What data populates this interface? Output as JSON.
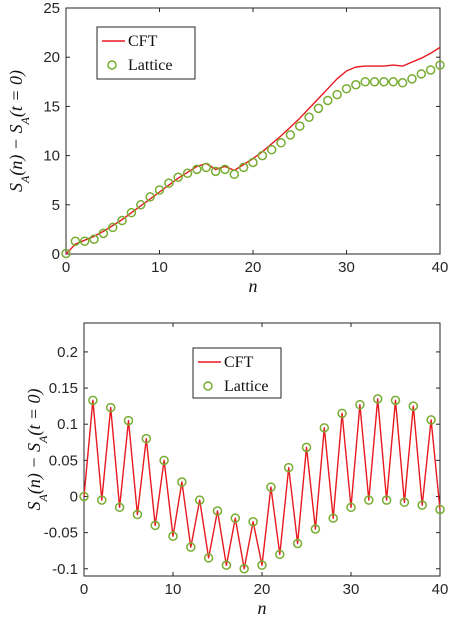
{
  "chart_data": [
    {
      "type": "line",
      "title": "",
      "xlabel": "n",
      "ylabel": "S_A(n) − S_A(t = 0)",
      "xlim": [
        0,
        40
      ],
      "ylim": [
        0,
        25
      ],
      "xticks": [
        "0",
        "10",
        "20",
        "30",
        "40"
      ],
      "yticks": [
        "0",
        "5",
        "10",
        "15",
        "20",
        "25"
      ],
      "xtick_values": [
        0,
        10,
        20,
        30,
        40
      ],
      "ytick_values": [
        0,
        5,
        10,
        15,
        20,
        25
      ],
      "grid": false,
      "legend": "top-left",
      "series": [
        {
          "name": "CFT",
          "style": "line",
          "color": "#e8191f",
          "x": [
            0,
            1,
            2,
            3,
            4,
            5,
            6,
            7,
            8,
            9,
            10,
            11,
            12,
            13,
            14,
            15,
            16,
            17,
            18,
            19,
            20,
            21,
            22,
            23,
            24,
            25,
            26,
            27,
            28,
            29,
            30,
            31,
            32,
            33,
            34,
            35,
            36,
            37,
            38,
            39,
            40
          ],
          "values": [
            0,
            1.0,
            1.4,
            1.8,
            2.3,
            2.9,
            3.5,
            4.2,
            4.9,
            5.6,
            6.3,
            7.0,
            7.7,
            8.3,
            8.9,
            9.2,
            8.6,
            8.9,
            8.5,
            9.1,
            9.7,
            10.4,
            11.2,
            12.0,
            12.9,
            13.8,
            14.8,
            15.8,
            16.8,
            17.8,
            18.6,
            19.0,
            19.1,
            19.1,
            19.1,
            19.2,
            19.1,
            19.5,
            19.9,
            20.4,
            21.0
          ]
        },
        {
          "name": "Lattice",
          "style": "markers",
          "color": "#77ac30",
          "x": [
            0,
            1,
            2,
            3,
            4,
            5,
            6,
            7,
            8,
            9,
            10,
            11,
            12,
            13,
            14,
            15,
            16,
            17,
            18,
            19,
            20,
            21,
            22,
            23,
            24,
            25,
            26,
            27,
            28,
            29,
            30,
            31,
            32,
            33,
            34,
            35,
            36,
            37,
            38,
            39,
            40
          ],
          "values": [
            0.05,
            1.3,
            1.3,
            1.5,
            2.1,
            2.7,
            3.4,
            4.2,
            5.0,
            5.8,
            6.5,
            7.2,
            7.8,
            8.2,
            8.6,
            8.8,
            8.4,
            8.6,
            8.1,
            8.8,
            9.3,
            10.0,
            10.6,
            11.3,
            12.1,
            13.0,
            13.9,
            14.8,
            15.6,
            16.2,
            16.8,
            17.2,
            17.5,
            17.5,
            17.5,
            17.5,
            17.4,
            17.8,
            18.3,
            18.7,
            19.2
          ]
        }
      ]
    },
    {
      "type": "line",
      "title": "",
      "xlabel": "n",
      "ylabel": "S_A(n) − S_A(t = 0)",
      "xlim": [
        0,
        40
      ],
      "ylim": [
        -0.11,
        0.24
      ],
      "xticks": [
        "0",
        "10",
        "20",
        "30",
        "40"
      ],
      "yticks": [
        "-0.1",
        "-0.05",
        "0",
        "0.05",
        "0.1",
        "0.15",
        "0.2"
      ],
      "xtick_values": [
        0,
        10,
        20,
        30,
        40
      ],
      "ytick_values": [
        -0.1,
        -0.05,
        0,
        0.05,
        0.1,
        0.15,
        0.2
      ],
      "grid": false,
      "legend": "top-center",
      "series": [
        {
          "name": "CFT",
          "style": "line",
          "color": "#e8191f",
          "x": [
            0,
            1,
            2,
            3,
            4,
            5,
            6,
            7,
            8,
            9,
            10,
            11,
            12,
            13,
            14,
            15,
            16,
            17,
            18,
            19,
            20,
            21,
            22,
            23,
            24,
            25,
            26,
            27,
            28,
            29,
            30,
            31,
            32,
            33,
            34,
            35,
            36,
            37,
            38,
            39,
            40
          ],
          "values": [
            0.0,
            0.133,
            -0.005,
            0.123,
            -0.015,
            0.105,
            -0.025,
            0.08,
            -0.04,
            0.05,
            -0.055,
            0.02,
            -0.07,
            -0.005,
            -0.085,
            -0.02,
            -0.095,
            -0.03,
            -0.1,
            -0.035,
            -0.095,
            0.013,
            -0.08,
            0.04,
            -0.065,
            0.068,
            -0.045,
            0.095,
            -0.03,
            0.115,
            -0.015,
            0.127,
            -0.005,
            0.135,
            -0.005,
            0.133,
            -0.008,
            0.125,
            -0.012,
            0.106,
            -0.018
          ]
        },
        {
          "name": "Lattice",
          "style": "markers",
          "color": "#77ac30",
          "x": [
            0,
            1,
            2,
            3,
            4,
            5,
            6,
            7,
            8,
            9,
            10,
            11,
            12,
            13,
            14,
            15,
            16,
            17,
            18,
            19,
            20,
            21,
            22,
            23,
            24,
            25,
            26,
            27,
            28,
            29,
            30,
            31,
            32,
            33,
            34,
            35,
            36,
            37,
            38,
            39,
            40
          ],
          "values": [
            0.0,
            0.133,
            -0.005,
            0.123,
            -0.015,
            0.105,
            -0.025,
            0.08,
            -0.04,
            0.05,
            -0.055,
            0.02,
            -0.07,
            -0.005,
            -0.085,
            -0.02,
            -0.095,
            -0.03,
            -0.1,
            -0.035,
            -0.095,
            0.013,
            -0.08,
            0.04,
            -0.065,
            0.068,
            -0.045,
            0.095,
            -0.03,
            0.115,
            -0.015,
            0.127,
            -0.005,
            0.135,
            -0.005,
            0.133,
            -0.008,
            0.125,
            -0.012,
            0.106,
            -0.018
          ]
        }
      ]
    }
  ]
}
